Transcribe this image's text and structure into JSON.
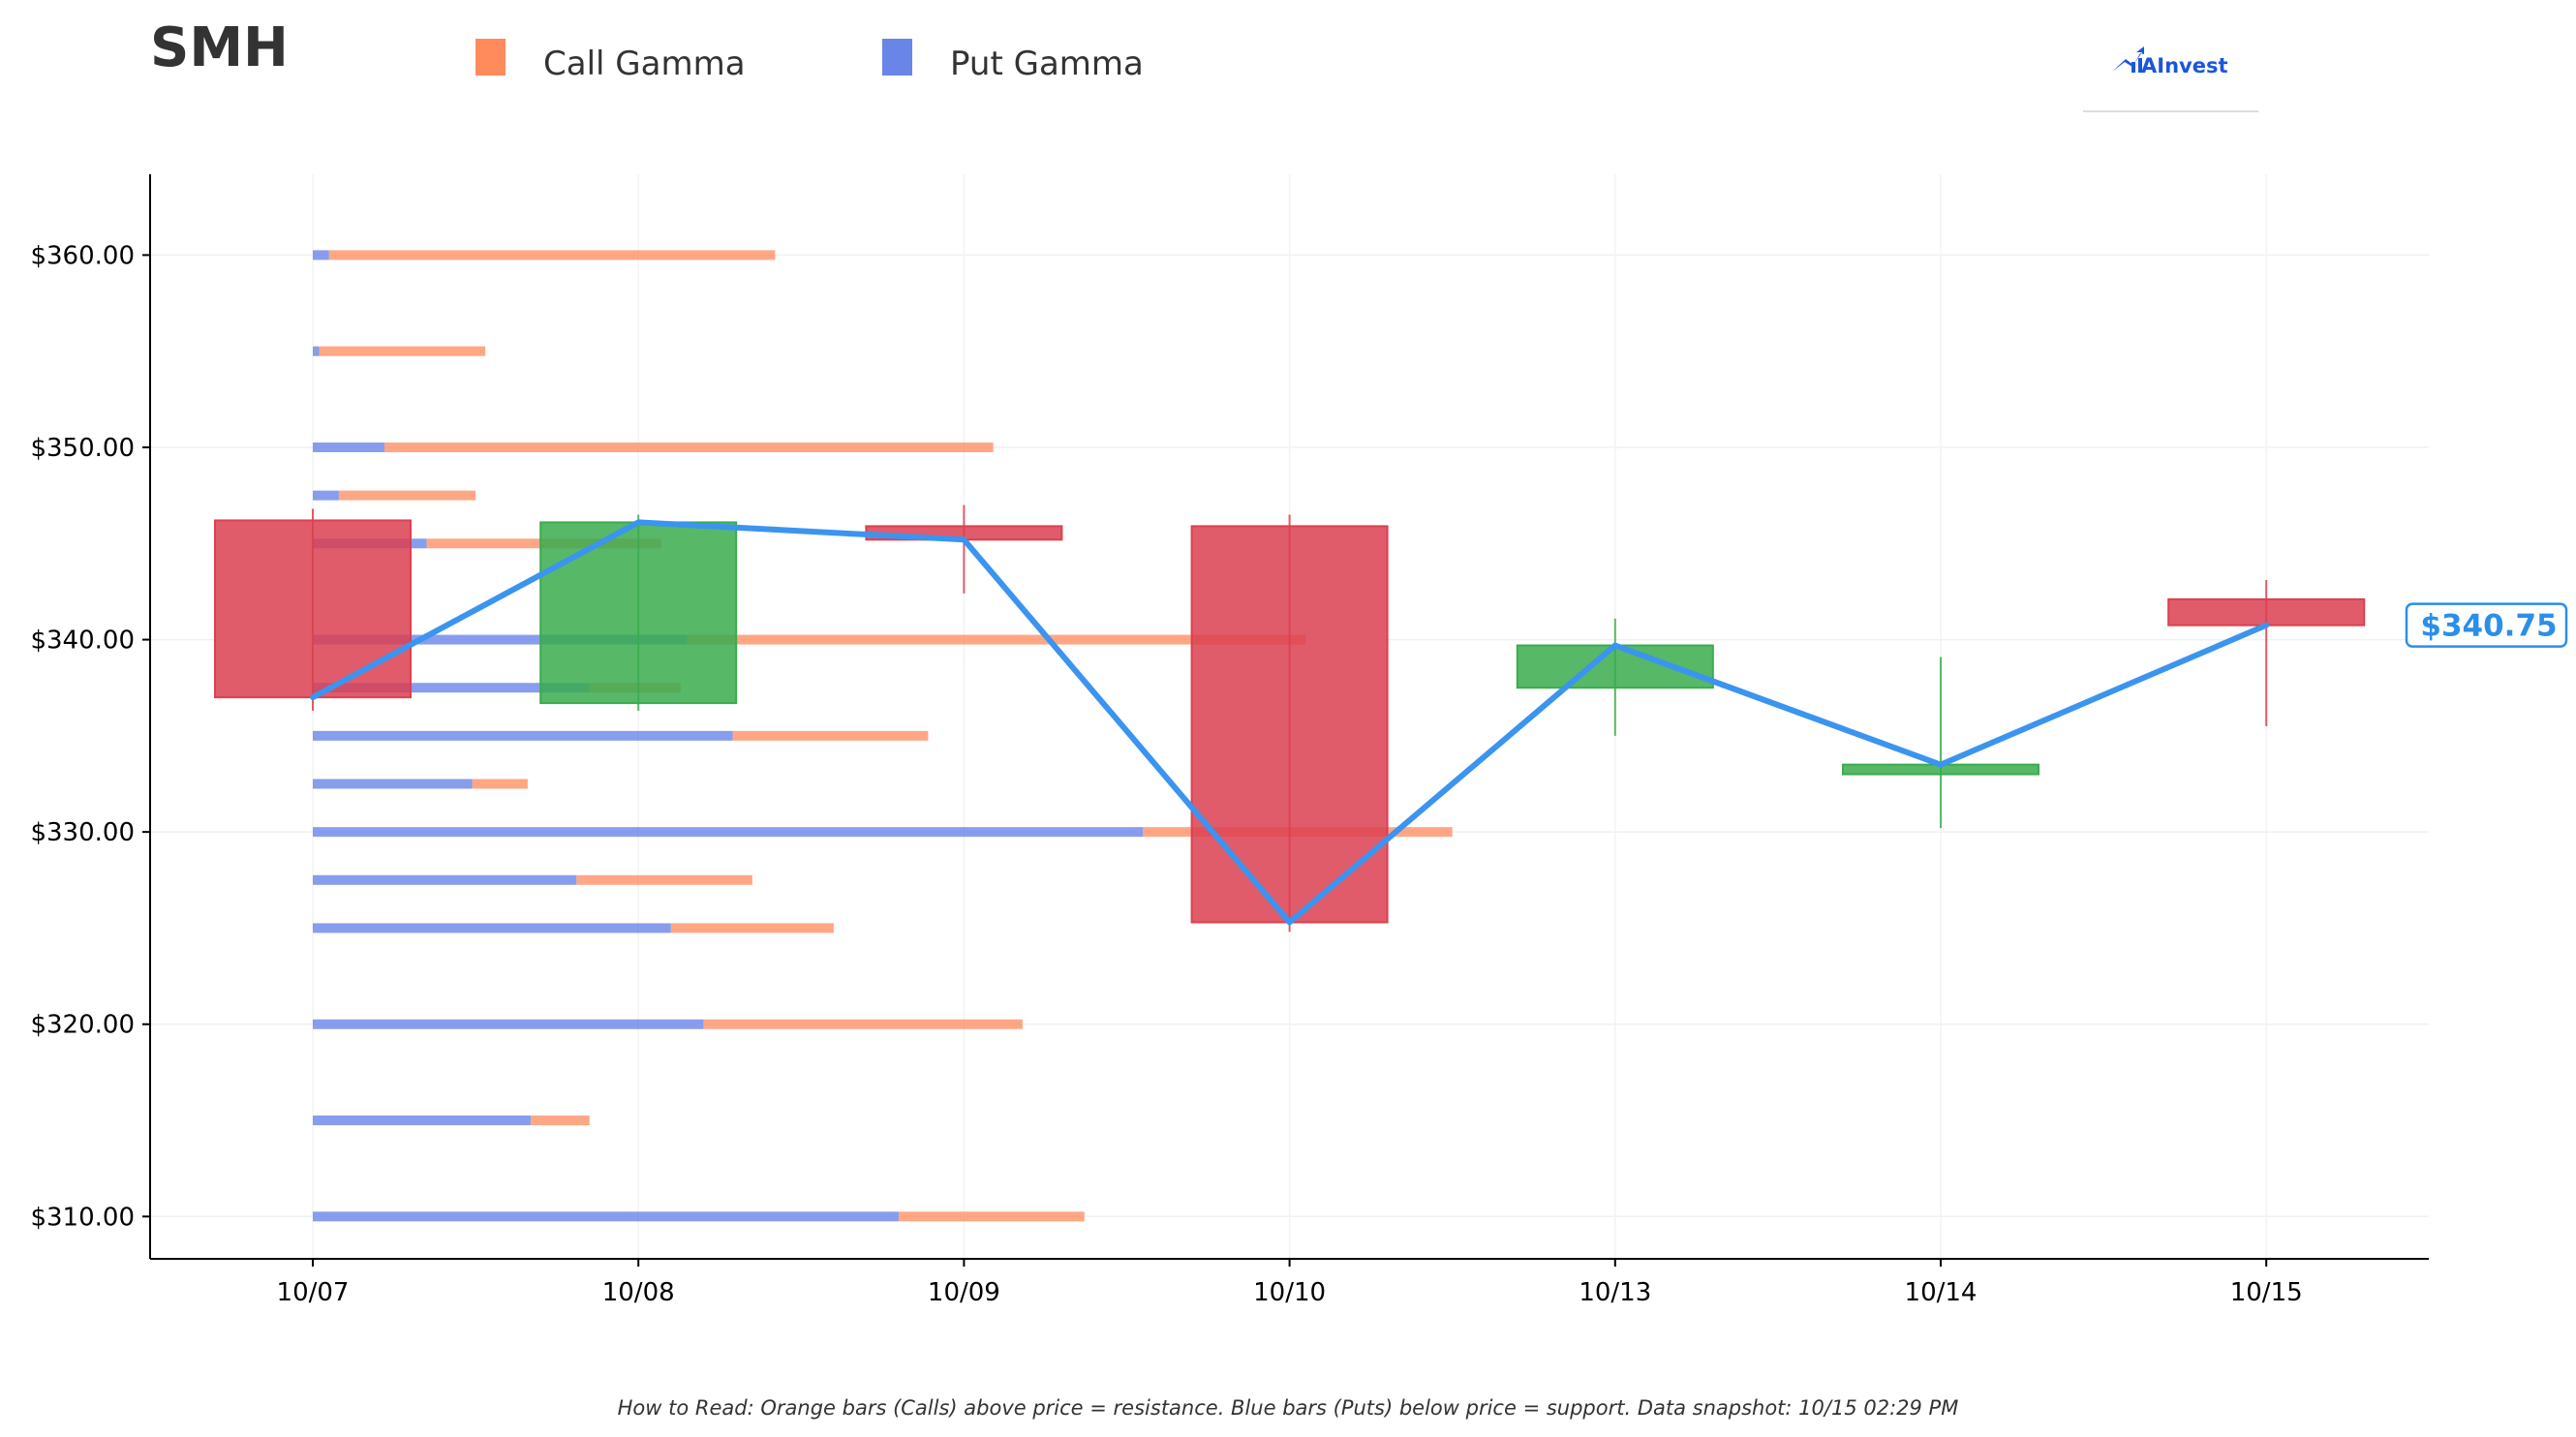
{
  "chart_data": {
    "type": "candlestick",
    "title": "SMH",
    "legend": [
      {
        "name": "Call Gamma",
        "color": "#ff8a5c"
      },
      {
        "name": "Put Gamma",
        "color": "#6a85e8"
      }
    ],
    "legend_position": "top",
    "categories": [
      "10/07",
      "10/08",
      "10/09",
      "10/10",
      "10/13",
      "10/14",
      "10/15"
    ],
    "y_ticks": [
      {
        "value": 310,
        "label": "$310.00"
      },
      {
        "value": 320,
        "label": "$320.00"
      },
      {
        "value": 330,
        "label": "$330.00"
      },
      {
        "value": 340,
        "label": "$340.00"
      },
      {
        "value": 350,
        "label": "$350.00"
      },
      {
        "value": 360,
        "label": "$360.00"
      }
    ],
    "ylim": [
      307.8,
      364.2
    ],
    "grid": true,
    "candles": [
      {
        "date": "10/07",
        "open": 346.2,
        "high": 346.8,
        "low": 336.3,
        "close": 337.0
      },
      {
        "date": "10/08",
        "open": 336.7,
        "high": 346.5,
        "low": 336.3,
        "close": 346.1
      },
      {
        "date": "10/09",
        "open": 345.9,
        "high": 347.0,
        "low": 342.4,
        "close": 345.2
      },
      {
        "date": "10/10",
        "open": 345.9,
        "high": 346.5,
        "low": 324.8,
        "close": 325.3
      },
      {
        "date": "10/13",
        "open": 337.5,
        "high": 341.1,
        "low": 335.0,
        "close": 339.7
      },
      {
        "date": "10/14",
        "open": 333.0,
        "high": 339.1,
        "low": 330.2,
        "close": 333.5
      },
      {
        "date": "10/15",
        "open": 342.1,
        "high": 343.1,
        "low": 335.5,
        "close": 340.75
      }
    ],
    "close_line": {
      "color": "#3b94ef",
      "values": [
        337.0,
        346.1,
        345.2,
        325.3,
        339.7,
        333.5,
        340.75
      ]
    },
    "gamma_bars": [
      {
        "strike": 360.0,
        "put": 0.05,
        "call": 1.37
      },
      {
        "strike": 355.0,
        "put": 0.02,
        "call": 0.51
      },
      {
        "strike": 350.0,
        "put": 0.22,
        "call": 1.87
      },
      {
        "strike": 347.5,
        "put": 0.08,
        "call": 0.42
      },
      {
        "strike": 345.0,
        "put": 0.35,
        "call": 0.72
      },
      {
        "strike": 340.0,
        "put": 1.15,
        "call": 1.9
      },
      {
        "strike": 337.5,
        "put": 0.85,
        "call": 0.28
      },
      {
        "strike": 335.0,
        "put": 1.29,
        "call": 0.6
      },
      {
        "strike": 332.5,
        "put": 0.49,
        "call": 0.17
      },
      {
        "strike": 330.0,
        "put": 2.55,
        "call": 0.95
      },
      {
        "strike": 327.5,
        "put": 0.81,
        "call": 0.54
      },
      {
        "strike": 325.0,
        "put": 1.1,
        "call": 0.5
      },
      {
        "strike": 320.0,
        "put": 1.2,
        "call": 0.98
      },
      {
        "strike": 315.0,
        "put": 0.67,
        "call": 0.18
      },
      {
        "strike": 310.0,
        "put": 1.8,
        "call": 0.57
      }
    ],
    "current_price_label": "$340.75",
    "up_color": "#3aac4e",
    "down_color": "#dc4050"
  },
  "logo_text": "AInvest",
  "footnote": "How to Read: Orange bars (Calls) above price = resistance. Blue bars (Puts) below price = support. Data snapshot: 10/15 02:29 PM"
}
